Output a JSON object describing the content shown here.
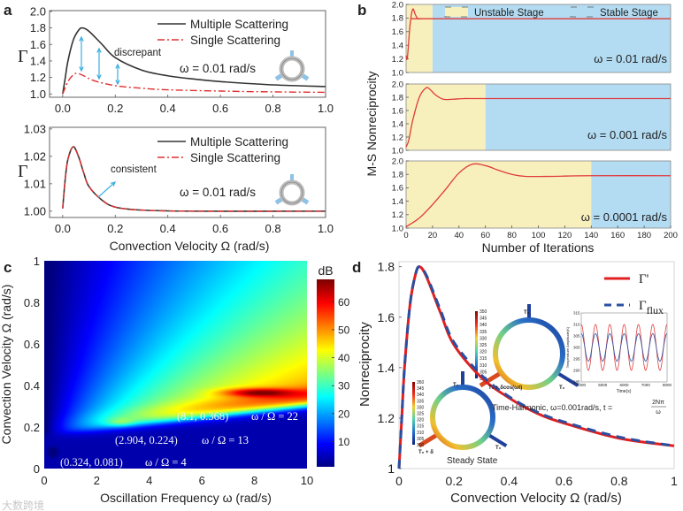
{
  "panel_labels": {
    "a": "a",
    "b": "b",
    "c": "c",
    "d": "d"
  },
  "watermark": "大数跨境",
  "colors": {
    "multiple": "#333333",
    "single": "#e03030",
    "arrow": "#3aaee0",
    "unstable": "#f7f0bd",
    "stable": "#b3dcf3",
    "gamma_prime": "#e02020",
    "gamma_flux": "#2a4fa0"
  },
  "chart_data": [
    {
      "id": "a_top",
      "type": "line",
      "ylabel": "Γ",
      "xlabel": "",
      "xlim": [
        0,
        1
      ],
      "ylim": [
        1.0,
        2.0
      ],
      "xticks": [
        "0.0",
        "0.2",
        "0.4",
        "0.6",
        "0.8",
        "1.0"
      ],
      "yticks": [
        "1.0",
        "1.2",
        "1.4",
        "1.6",
        "1.8",
        "2.0"
      ],
      "legend": [
        "Multiple Scattering",
        "Single Scattering"
      ],
      "legend_position": "top-right",
      "annotations": [
        "discrepant",
        "ω = 0.01 rad/s"
      ],
      "series": [
        {
          "name": "Multiple Scattering",
          "x": [
            0,
            0.01,
            0.02,
            0.04,
            0.06,
            0.075,
            0.1,
            0.15,
            0.2,
            0.3,
            0.4,
            0.5,
            0.6,
            0.8,
            1.0
          ],
          "y": [
            1.0,
            1.2,
            1.4,
            1.65,
            1.77,
            1.8,
            1.76,
            1.6,
            1.44,
            1.29,
            1.22,
            1.18,
            1.15,
            1.11,
            1.09
          ]
        },
        {
          "name": "Single Scattering",
          "x": [
            0,
            0.02,
            0.04,
            0.055,
            0.08,
            0.12,
            0.2,
            0.3,
            0.4,
            0.6,
            0.8,
            1.0
          ],
          "y": [
            1.0,
            1.15,
            1.23,
            1.25,
            1.22,
            1.16,
            1.1,
            1.07,
            1.05,
            1.035,
            1.025,
            1.02
          ]
        }
      ]
    },
    {
      "id": "a_bottom",
      "type": "line",
      "ylabel": "Γ",
      "xlabel": "Convection Velocity Ω (rad/s)",
      "xlim": [
        0,
        1
      ],
      "ylim": [
        1.0,
        1.03
      ],
      "xticks": [
        "0.0",
        "0.2",
        "0.4",
        "0.6",
        "0.8",
        "1.0"
      ],
      "yticks": [
        "1.00",
        "1.01",
        "1.02",
        "1.03"
      ],
      "legend": [
        "Multiple Scattering",
        "Single Scattering"
      ],
      "legend_position": "top-right",
      "annotations": [
        "consistent",
        "ω = 0.01 rad/s"
      ],
      "series": [
        {
          "name": "Multiple Scattering",
          "x": [
            0,
            0.01,
            0.02,
            0.04,
            0.06,
            0.08,
            0.1,
            0.15,
            0.2,
            0.3,
            0.5,
            1.0
          ],
          "y": [
            1.001,
            1.012,
            1.019,
            1.0235,
            1.02,
            1.014,
            1.009,
            1.004,
            1.0015,
            1.0004,
            1.0,
            1.0
          ]
        },
        {
          "name": "Single Scattering",
          "x": [
            0,
            0.01,
            0.02,
            0.04,
            0.06,
            0.08,
            0.1,
            0.15,
            0.2,
            0.3,
            0.5,
            1.0
          ],
          "y": [
            1.001,
            1.012,
            1.019,
            1.0235,
            1.02,
            1.014,
            1.009,
            1.004,
            1.0015,
            1.0004,
            1.0,
            1.0
          ]
        }
      ]
    },
    {
      "id": "b",
      "type": "line",
      "ylabel": "M-S Nonreciprocity",
      "xlabel": "Number of Iterations",
      "xlim": [
        0,
        200
      ],
      "ylim": [
        1.0,
        2.0
      ],
      "xticks": [
        "0",
        "20",
        "40",
        "60",
        "80",
        "100",
        "120",
        "140",
        "160",
        "180",
        "200"
      ],
      "yticks": [
        "1.0",
        "1.2",
        "1.4",
        "1.6",
        "1.8",
        "2.0"
      ],
      "legend": [
        "Unstable Stage",
        "Stable Stage"
      ],
      "legend_position": "top-right",
      "subplots": [
        {
          "label": "ω = 0.01 rad/s",
          "stable_from": 20,
          "x": [
            0,
            1,
            3,
            5,
            7,
            9,
            12,
            20,
            200
          ],
          "y": [
            1.25,
            1.22,
            1.7,
            1.93,
            1.85,
            1.79,
            1.79,
            1.79,
            1.79
          ]
        },
        {
          "label": "ω = 0.001 rad/s",
          "stable_from": 60,
          "x": [
            0,
            2,
            5,
            10,
            15,
            18,
            22,
            28,
            35,
            45,
            60,
            200
          ],
          "y": [
            1.05,
            1.15,
            1.45,
            1.8,
            1.94,
            1.92,
            1.84,
            1.77,
            1.77,
            1.78,
            1.78,
            1.78
          ]
        },
        {
          "label": "ω = 0.0001 rad/s",
          "stable_from": 140,
          "x": [
            0,
            10,
            20,
            30,
            40,
            50,
            60,
            70,
            80,
            90,
            110,
            140,
            200
          ],
          "y": [
            1.02,
            1.15,
            1.35,
            1.58,
            1.82,
            1.95,
            1.93,
            1.86,
            1.8,
            1.77,
            1.77,
            1.78,
            1.78
          ]
        }
      ]
    },
    {
      "id": "c",
      "type": "heatmap",
      "xlabel": "Oscillation Frequency ω (rad/s)",
      "ylabel": "Convection Velocity Ω (rad/s)",
      "xlim": [
        0,
        10
      ],
      "ylim": [
        0,
        1
      ],
      "xticks": [
        "0",
        "2",
        "4",
        "6",
        "8",
        "10"
      ],
      "yticks": [
        "0",
        "0.2",
        "0.4",
        "0.6",
        "0.8",
        "1"
      ],
      "colorbar": {
        "label": "dB",
        "range": [
          1,
          68
        ],
        "ticks": [
          "10",
          "20",
          "30",
          "40",
          "50",
          "60"
        ],
        "colormap": "jet"
      },
      "peaks": [
        {
          "omega": 0.324,
          "Omega": 0.081,
          "label": "(0.324, 0.081)",
          "ratio": "ω / Ω = 4",
          "value": 16
        },
        {
          "omega": 2.904,
          "Omega": 0.224,
          "label": "(2.904, 0.224)",
          "ratio": "ω / Ω = 13",
          "value": 42
        },
        {
          "omega": 8.1,
          "Omega": 0.368,
          "label": "(8.1, 0.368)",
          "ratio": "ω / Ω = 22",
          "value": 66
        }
      ]
    },
    {
      "id": "d",
      "type": "line",
      "xlabel": "Convection Velocity Ω (rad/s)",
      "ylabel": "Nonreciprocity",
      "xlim": [
        0,
        1
      ],
      "ylim": [
        1.0,
        1.82
      ],
      "xticks": [
        "0",
        "0.2",
        "0.4",
        "0.6",
        "0.8",
        "1"
      ],
      "yticks": [
        "1",
        "1.2",
        "1.4",
        "1.6",
        "1.8"
      ],
      "legend": [
        "Γ'",
        "Γ",
        "flux"
      ],
      "legend_position": "top-right",
      "series": [
        {
          "name": "Γ'",
          "x": [
            0,
            0.01,
            0.02,
            0.04,
            0.06,
            0.075,
            0.1,
            0.15,
            0.2,
            0.3,
            0.4,
            0.5,
            0.6,
            0.8,
            1.0
          ],
          "y": [
            1.0,
            1.2,
            1.4,
            1.65,
            1.77,
            1.8,
            1.76,
            1.62,
            1.49,
            1.36,
            1.28,
            1.22,
            1.18,
            1.12,
            1.09
          ]
        },
        {
          "name": "Γflux",
          "x": [
            0,
            0.01,
            0.02,
            0.04,
            0.06,
            0.075,
            0.1,
            0.15,
            0.2,
            0.3,
            0.4,
            0.5,
            0.6,
            0.8,
            1.0
          ],
          "y": [
            1.0,
            1.2,
            1.4,
            1.65,
            1.77,
            1.8,
            1.765,
            1.63,
            1.5,
            1.37,
            1.285,
            1.225,
            1.185,
            1.125,
            1.09
          ]
        }
      ],
      "insets": {
        "colorbar_ticks": [
          "350",
          "345",
          "340",
          "335",
          "330",
          "325",
          "320",
          "315",
          "310",
          "305",
          "300"
        ],
        "time_harmonic_label": "Time-Harmonic, ω=0.001rad/s, t = 2Nπ/ω",
        "time_harmonic_t_num": "2Nπ",
        "time_harmonic_t_den": "ω",
        "time_harmonic_prefix": "Time-Harmonic, ω=0.001rad/s, t =",
        "steady_state_label": "Steady State",
        "t0": "T₀",
        "t0_cos": "T₀ + δcos(ωt)",
        "t0_delta": "T₀ + δ",
        "temp_chart": {
          "xlabel": "Time(s)",
          "ylabel": "Temperature Amplitude(K)",
          "xticks": [
            "4000",
            "5000",
            "6000",
            "7000",
            "8000"
          ],
          "yticks": [
            "285",
            "290",
            "295",
            "300",
            "305",
            "310",
            "315"
          ],
          "series": [
            {
              "name": "red",
              "mean": 300,
              "amplitude": 10,
              "cycles": 6
            },
            {
              "name": "blue",
              "mean": 300,
              "amplitude": 6,
              "cycles": 6
            }
          ]
        }
      }
    }
  ]
}
